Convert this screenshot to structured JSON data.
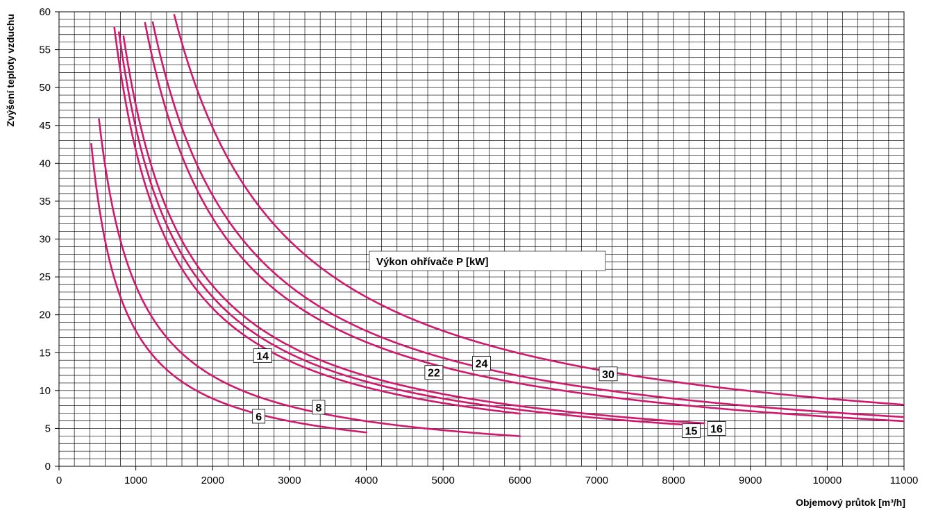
{
  "chart_data": {
    "type": "line",
    "xlabel": "Objemový průtok [m³/h]",
    "ylabel": "Zvýšení teploty vzduchu",
    "legend_title": "Výkon ohřívače P [kW]",
    "xlim": [
      0,
      11000
    ],
    "ylim": [
      0,
      60
    ],
    "x_ticks": [
      0,
      1000,
      2000,
      3000,
      4000,
      5000,
      6000,
      7000,
      8000,
      9000,
      10000,
      11000
    ],
    "y_ticks": [
      0,
      5,
      10,
      15,
      20,
      25,
      30,
      35,
      40,
      45,
      50,
      55,
      60
    ],
    "grid": true,
    "line_color": "#d0196e",
    "series": [
      {
        "name": "6",
        "x_start": 420,
        "x_end": 4000,
        "label_at": [
          2600,
          6.6
        ]
      },
      {
        "name": "8",
        "x_start": 520,
        "x_end": 6000,
        "label_at": [
          3380,
          7.8
        ]
      },
      {
        "name": "14",
        "x_start": 720,
        "x_end": 6000,
        "label_at": [
          2650,
          14.6
        ]
      },
      {
        "name": "15",
        "x_start": 780,
        "x_end": 8300,
        "label_at": [
          8230,
          4.7
        ]
      },
      {
        "name": "16",
        "x_start": 840,
        "x_end": 8400,
        "label_at": [
          8560,
          5.0
        ]
      },
      {
        "name": "22",
        "x_start": 1120,
        "x_end": 11000,
        "label_at": [
          4880,
          12.4
        ]
      },
      {
        "name": "24",
        "x_start": 1220,
        "x_end": 11000,
        "label_at": [
          5500,
          13.6
        ]
      },
      {
        "name": "30",
        "x_start": 1500,
        "x_end": 11000,
        "label_at": [
          7150,
          12.2
        ]
      }
    ]
  }
}
